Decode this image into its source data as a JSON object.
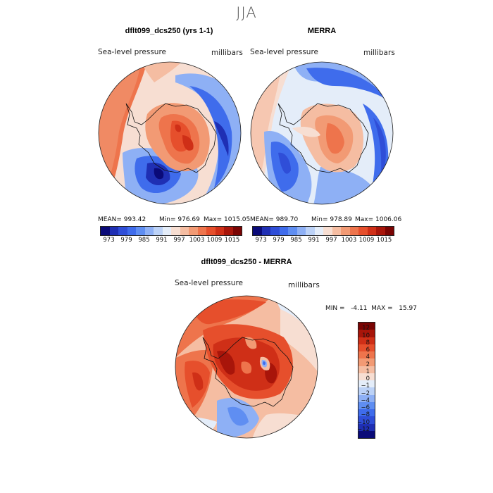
{
  "figure": {
    "season": "JJA",
    "panels": [
      {
        "title": "dflt099_dcs250 (yrs 1-1)",
        "variable": "Sea-level pressure",
        "units": "millibars",
        "stats": {
          "mean": "MEAN= 993.42",
          "min": "Min= 976.69",
          "max": "Max= 1015.05"
        }
      },
      {
        "title": "MERRA",
        "variable": "Sea-level pressure",
        "units": "millibars",
        "stats": {
          "mean": "MEAN= 989.70",
          "min": "Min= 978.89",
          "max": "Max= 1006.06"
        }
      },
      {
        "title": "dflt099_dcs250 - MERRA",
        "variable": "Sea-level pressure",
        "units": "millibars",
        "stats": {
          "minmax": "MIN =   -4.11  MAX =   15.97"
        }
      }
    ],
    "top_colorbar": {
      "ticks": [
        "973",
        "979",
        "985",
        "991",
        "997",
        "1003",
        "1009",
        "1015"
      ],
      "colors": [
        "#0a0a78",
        "#1f2fb4",
        "#2f4ed8",
        "#3f6cec",
        "#5f8ef2",
        "#8eb0f5",
        "#bcd2f7",
        "#e4edf9",
        "#f7ded2",
        "#f5bda2",
        "#f29a74",
        "#ee744c",
        "#e64f2c",
        "#cf2f17",
        "#a8150a",
        "#7a0403"
      ]
    },
    "diff_colorbar": {
      "ticks": [
        "12",
        "10",
        "8",
        "6",
        "4",
        "2",
        "1",
        "0",
        "−1",
        "−2",
        "−4",
        "−6",
        "−8",
        "−10",
        "−12"
      ],
      "colors": [
        "#7a0403",
        "#a8150a",
        "#cf2f17",
        "#e64f2c",
        "#ee744c",
        "#f29a74",
        "#f5bda2",
        "#f7ded2",
        "#e4edf9",
        "#bcd2f7",
        "#8eb0f5",
        "#5f8ef2",
        "#3f6cec",
        "#2f4ed8",
        "#1f2fb4",
        "#0a0a78"
      ]
    }
  }
}
